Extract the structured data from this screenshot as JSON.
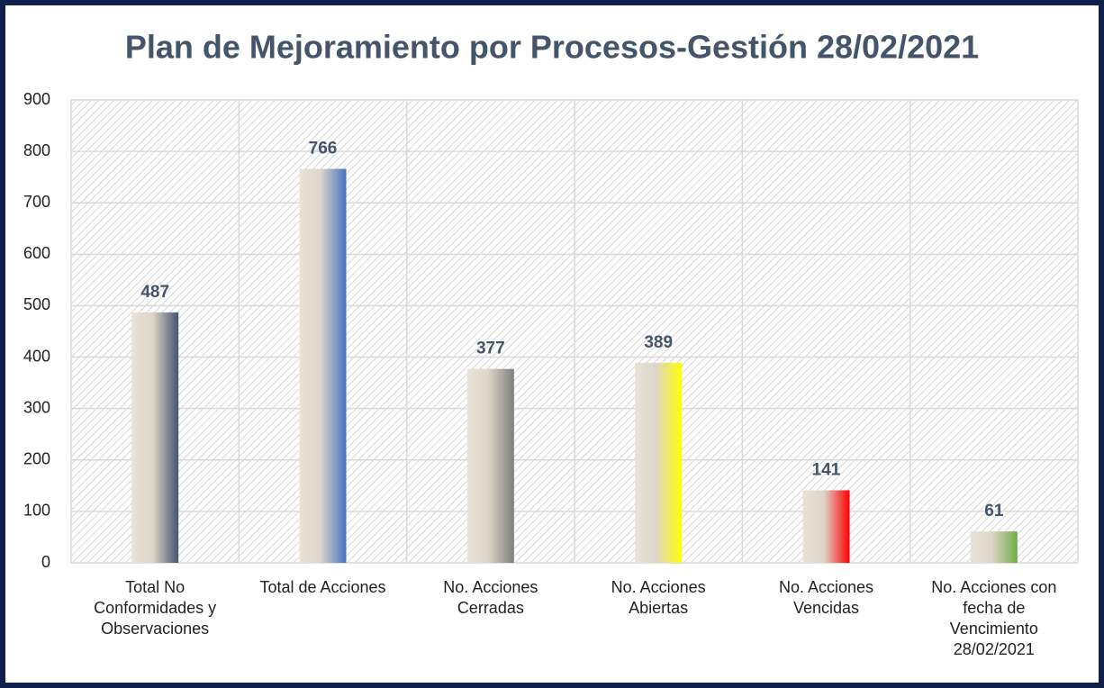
{
  "chart_data": {
    "type": "bar",
    "title": "Plan de Mejoramiento por Procesos-Gestión 28/02/2021",
    "categories": [
      "Total No Conformidades y Observaciones",
      "Total de Acciones",
      "No. Acciones Cerradas",
      "No. Acciones Abiertas",
      "No. Acciones Vencidas",
      "No. Acciones con fecha de Vencimiento 28/02/2021"
    ],
    "values": [
      487,
      766,
      377,
      389,
      141,
      61
    ],
    "colors": [
      "#44546a",
      "#4472c4",
      "#7f7f7f",
      "#ffff00",
      "#ff0000",
      "#70ad47"
    ],
    "ylim": [
      0,
      900
    ],
    "yticks": [
      0,
      100,
      200,
      300,
      400,
      500,
      600,
      700,
      800,
      900
    ],
    "grid": true
  }
}
